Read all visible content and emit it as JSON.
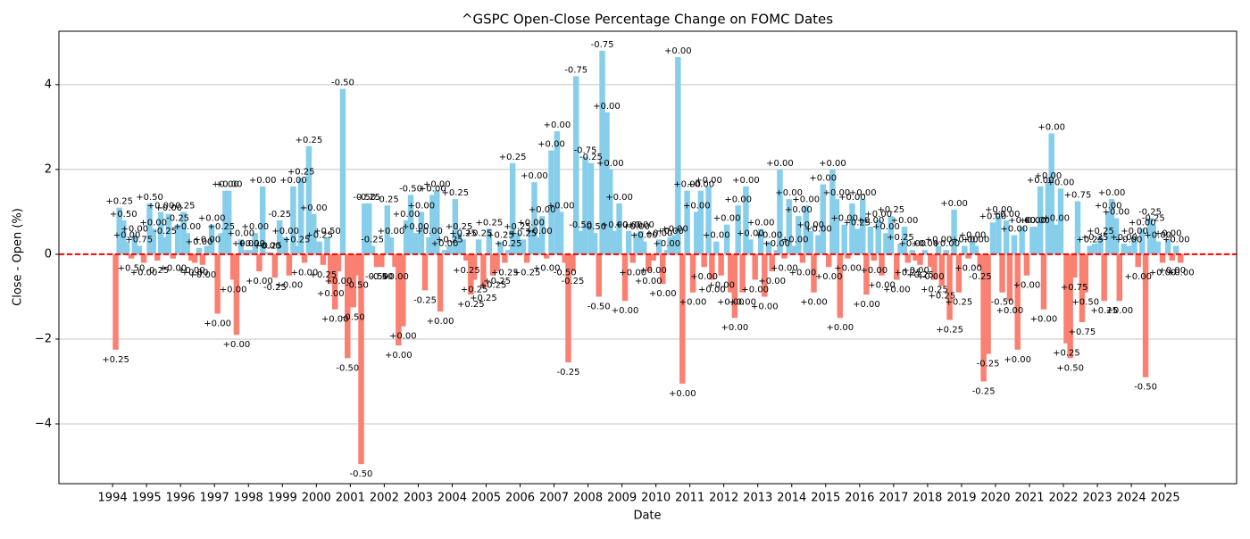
{
  "chart_data": {
    "type": "bar",
    "title": "^GSPC Open-Close Percentage Change on FOMC Dates",
    "x_label": "Date",
    "y_label": "Close - Open (%)",
    "pos_color": "#87ceeb",
    "neg_color": "#fa8072",
    "zero_line_color": "#ff0000",
    "grid": "y",
    "xlim": [
      1992.42,
      2027.1
    ],
    "xticks": [
      1994,
      1995,
      1996,
      1997,
      1998,
      1999,
      2000,
      2001,
      2002,
      2003,
      2004,
      2005,
      2006,
      2007,
      2008,
      2009,
      2010,
      2011,
      2012,
      2013,
      2014,
      2015,
      2016,
      2017,
      2018,
      2019,
      2020,
      2021,
      2022,
      2023,
      2024,
      2025
    ],
    "ylim": [
      -5.41,
      5.26
    ],
    "yticks": [
      {
        "value": -4,
        "label": "−4"
      },
      {
        "value": -2,
        "label": "−2"
      },
      0,
      2,
      4
    ],
    "x": [
      1994.09,
      1994.2,
      1994.32,
      1994.42,
      1994.55,
      1994.65,
      1994.78,
      1994.92,
      1995.09,
      1995.2,
      1995.32,
      1995.42,
      1995.55,
      1995.65,
      1995.78,
      1995.92,
      1996.09,
      1996.2,
      1996.32,
      1996.42,
      1996.55,
      1996.65,
      1996.78,
      1996.92,
      1997.09,
      1997.2,
      1997.32,
      1997.42,
      1997.55,
      1997.65,
      1997.78,
      1997.92,
      1998.09,
      1998.2,
      1998.32,
      1998.42,
      1998.55,
      1998.65,
      1998.78,
      1998.92,
      1999.09,
      1999.2,
      1999.32,
      1999.42,
      1999.55,
      1999.65,
      1999.78,
      1999.92,
      2000.09,
      2000.2,
      2000.32,
      2000.42,
      2000.55,
      2000.65,
      2000.78,
      2000.92,
      2001.09,
      2001.2,
      2001.32,
      2001.42,
      2001.55,
      2001.65,
      2001.78,
      2001.92,
      2002.09,
      2002.2,
      2002.32,
      2002.42,
      2002.55,
      2002.65,
      2002.78,
      2002.92,
      2003.09,
      2003.2,
      2003.32,
      2003.42,
      2003.55,
      2003.65,
      2003.78,
      2003.92,
      2004.09,
      2004.2,
      2004.32,
      2004.42,
      2004.55,
      2004.65,
      2004.78,
      2004.92,
      2005.09,
      2005.2,
      2005.32,
      2005.42,
      2005.55,
      2005.65,
      2005.78,
      2005.92,
      2006.09,
      2006.2,
      2006.32,
      2006.42,
      2006.55,
      2006.65,
      2006.78,
      2006.92,
      2007.09,
      2007.2,
      2007.32,
      2007.42,
      2007.55,
      2007.65,
      2007.78,
      2007.92,
      2008.09,
      2008.2,
      2008.32,
      2008.42,
      2008.55,
      2008.65,
      2008.78,
      2008.92,
      2009.09,
      2009.2,
      2009.32,
      2009.42,
      2009.55,
      2009.65,
      2009.78,
      2009.92,
      2010.09,
      2010.2,
      2010.32,
      2010.42,
      2010.55,
      2010.65,
      2010.78,
      2010.92,
      2011.09,
      2011.2,
      2011.32,
      2011.42,
      2011.55,
      2011.65,
      2011.78,
      2011.92,
      2012.09,
      2012.2,
      2012.32,
      2012.42,
      2012.55,
      2012.65,
      2012.78,
      2012.92,
      2013.09,
      2013.2,
      2013.32,
      2013.42,
      2013.55,
      2013.65,
      2013.78,
      2013.92,
      2014.09,
      2014.2,
      2014.32,
      2014.42,
      2014.55,
      2014.65,
      2014.78,
      2014.92,
      2015.09,
      2015.2,
      2015.32,
      2015.42,
      2015.55,
      2015.65,
      2015.78,
      2015.92,
      2016.09,
      2016.2,
      2016.32,
      2016.42,
      2016.55,
      2016.65,
      2016.78,
      2016.92,
      2017.09,
      2017.2,
      2017.32,
      2017.42,
      2017.55,
      2017.65,
      2017.78,
      2017.92,
      2018.09,
      2018.2,
      2018.32,
      2018.42,
      2018.55,
      2018.65,
      2018.78,
      2018.92,
      2019.09,
      2019.2,
      2019.32,
      2019.42,
      2019.55,
      2019.65,
      2019.78,
      2019.92,
      2020.09,
      2020.2,
      2020.32,
      2020.42,
      2020.55,
      2020.65,
      2020.78,
      2020.92,
      2021.09,
      2021.2,
      2021.32,
      2021.42,
      2021.55,
      2021.65,
      2021.78,
      2021.92,
      2022.09,
      2022.2,
      2022.32,
      2022.42,
      2022.55,
      2022.65,
      2022.78,
      2022.92,
      2023.09,
      2023.2,
      2023.32,
      2023.42,
      2023.55,
      2023.65,
      2023.78,
      2023.92,
      2024.09,
      2024.2,
      2024.32,
      2024.42,
      2024.55,
      2024.65,
      2024.78,
      2024.92,
      2025.08,
      2025.2,
      2025.32,
      2025.45
    ],
    "values": [
      -2.25,
      1.1,
      0.8,
      0.3,
      -0.1,
      0.45,
      0.2,
      -0.2,
      1.2,
      0.6,
      -0.15,
      1.0,
      0.4,
      0.95,
      -0.1,
      0.7,
      1.0,
      0.5,
      -0.15,
      -0.2,
      0.15,
      -0.25,
      0.2,
      0.7,
      -1.4,
      0.5,
      1.5,
      1.5,
      -0.6,
      -1.9,
      0.35,
      0.1,
      0.1,
      0.5,
      -0.4,
      1.6,
      0.05,
      0.05,
      -0.55,
      0.8,
      0.4,
      -0.5,
      1.6,
      0.2,
      1.8,
      -0.2,
      2.55,
      0.95,
      0.3,
      -0.25,
      0.4,
      -0.7,
      -1.3,
      -0.4,
      3.9,
      -2.45,
      -1.25,
      -0.5,
      -4.95,
      1.2,
      1.2,
      0.2,
      -0.3,
      -0.3,
      1.15,
      0.4,
      -0.3,
      -2.15,
      -1.7,
      0.8,
      1.4,
      0.5,
      1.0,
      -0.85,
      0.4,
      1.4,
      1.5,
      -1.35,
      0.1,
      0.2,
      1.3,
      0.5,
      0.35,
      -0.15,
      -0.95,
      -0.6,
      0.35,
      -0.8,
      0.6,
      -0.5,
      -0.4,
      0.3,
      -0.2,
      0.1,
      2.15,
      0.5,
      0.35,
      -0.2,
      0.6,
      1.7,
      0.4,
      0.9,
      -0.1,
      2.45,
      2.9,
      1.0,
      -0.2,
      -2.55,
      -0.4,
      4.2,
      0.55,
      2.3,
      2.15,
      0.5,
      -1.0,
      4.8,
      3.35,
      2.0,
      0.55,
      1.2,
      -1.1,
      0.55,
      -0.2,
      0.5,
      0.55,
      0.3,
      -0.4,
      -0.15,
      0.35,
      -0.7,
      0.1,
      0.4,
      0.45,
      4.65,
      -3.05,
      1.5,
      -0.9,
      1.0,
      1.5,
      -0.3,
      1.6,
      -0.6,
      0.3,
      -0.5,
      0.7,
      -0.9,
      -1.5,
      1.15,
      -0.9,
      1.6,
      0.35,
      -0.6,
      0.6,
      -1.0,
      0.3,
      -0.4,
      0.1,
      2.0,
      -0.1,
      1.3,
      0.2,
      0.9,
      -0.2,
      1.15,
      0.55,
      -0.9,
      0.45,
      1.65,
      -0.3,
      2.0,
      1.3,
      -1.5,
      0.7,
      -0.1,
      1.2,
      0.6,
      1.3,
      -0.95,
      0.65,
      -0.15,
      0.8,
      -0.5,
      0.5,
      0.9,
      -0.6,
      0.25,
      0.65,
      -0.2,
      0.1,
      -0.15,
      -0.25,
      0.1,
      -0.3,
      -0.6,
      0.2,
      -0.75,
      0.1,
      -1.55,
      1.05,
      -0.9,
      0.2,
      -0.1,
      0.3,
      0.2,
      -0.3,
      -3.0,
      -2.35,
      0.75,
      0.9,
      -0.9,
      0.8,
      -1.1,
      0.45,
      -2.25,
      0.65,
      -0.5,
      0.65,
      0.65,
      1.6,
      -1.3,
      1.7,
      2.85,
      0.7,
      1.55,
      -2.1,
      -2.45,
      -0.55,
      1.25,
      -1.6,
      -0.9,
      0.2,
      0.25,
      0.4,
      -1.1,
      1.0,
      1.3,
      0.85,
      -1.1,
      0.25,
      0.2,
      0.4,
      -0.3,
      0.6,
      -2.9,
      0.85,
      0.7,
      0.3,
      -0.2,
      0.35,
      -0.15,
      0.2,
      -0.2
    ],
    "annotations": [
      "+0.25",
      "+0.25",
      "+0.50",
      "+0.00",
      "+0.50",
      "+0.00",
      "+0.75",
      "+0.00",
      "+0.50",
      "+0.00",
      "-0.25",
      "+0.00",
      "-0.25",
      "+0.00",
      "+0.00",
      "-0.25",
      "-0.25",
      "+0.00",
      "+0.00",
      "+0.00",
      "+0.00",
      "+0.00",
      "+0.00",
      "+0.00",
      "+0.00",
      "+0.25",
      "+0.00",
      "+0.00",
      "+0.00",
      "+0.00",
      "+0.00",
      "+0.00",
      "+0.00",
      "+0.00",
      "+0.00",
      "+0.00",
      "+0.00",
      "-0.25",
      "-0.25",
      "-0.25",
      "+0.00",
      "+0.00",
      "+0.00",
      "+0.25",
      "+0.25",
      "+0.00",
      "+0.25",
      "+0.00",
      "+0.25",
      "+0.25",
      "+0.50",
      "+0.00",
      "+0.00",
      "+0.00",
      "-0.50",
      "-0.50",
      "-0.50",
      "-0.50",
      "-0.50",
      "-0.50",
      "-0.25",
      "-0.25",
      "-0.50",
      "-0.50",
      "-0.25",
      "+0.00",
      "+0.00",
      "+0.00",
      "+0.00",
      "+0.00",
      "-0.50",
      "+0.00",
      "+0.00",
      "-0.25",
      "+0.00",
      "+0.00",
      "+0.00",
      "+0.00",
      "+0.00",
      "+0.25",
      "+0.25",
      "+0.25",
      "+0.25",
      "+0.25",
      "+0.25",
      "+0.25",
      "+0.25",
      "+0.25",
      "+0.25",
      "+0.25",
      "+0.25",
      "+0.25",
      "+0.25",
      "+0.25",
      "+0.25",
      "+0.25",
      "+0.25",
      "+0.25",
      "+0.00",
      "+0.00",
      "+0.00",
      "+0.00",
      "+0.00",
      "+0.00",
      "+0.00",
      "+0.00",
      "-0.50",
      "-0.25",
      "-0.25",
      "-0.75",
      "-0.50",
      "-0.75",
      "-0.25",
      "-0.50",
      "-0.50",
      "-0.75",
      "+0.00",
      "+0.00",
      "+0.00",
      "+0.00",
      "+0.00",
      "+0.00",
      "+0.00",
      "+0.00",
      "+0.00",
      "+0.00",
      "+0.00",
      "+0.00",
      "+0.00",
      "+0.00",
      "+0.00",
      "+0.00",
      "+0.00",
      "+0.00",
      "+0.00",
      "+0.00",
      "+0.00",
      "+0.00",
      "+0.00",
      "+0.00",
      "+0.00",
      "+0.00",
      "+0.00",
      "+0.00",
      "+0.00",
      "+0.00",
      "+0.00",
      "+0.00",
      "+0.00",
      "+0.00",
      "+0.00",
      "+0.00",
      "+0.00",
      "+0.00",
      "+0.00",
      "+0.00",
      "+0.00",
      "+0.00",
      "+0.00",
      "+0.00",
      "+0.00",
      "+0.00",
      "+0.00",
      "+0.00",
      "+0.00",
      "+0.00",
      "+0.00",
      "+0.00",
      "+0.00",
      "+0.00",
      "+0.00",
      "+0.00",
      "+0.00",
      "+0.00",
      "+0.00",
      "+0.25",
      "+0.00",
      "+0.00",
      "+0.00",
      "+0.00",
      "+0.00",
      "+0.00",
      "+0.00",
      "+0.25",
      "+0.00",
      "+0.25",
      "+0.00",
      "+0.25",
      "+0.00",
      "+0.00",
      "+0.25",
      "+0.00",
      "+0.00",
      "+0.25",
      "+0.00",
      "+0.25",
      "+0.00",
      "+0.25",
      "+0.00",
      "+0.25",
      "+0.00",
      "+0.00",
      "+0.00",
      "+0.00",
      "-0.25",
      "-0.25",
      "-0.25",
      "+0.00",
      "+0.00",
      "-0.50",
      "+0.00",
      "+0.00",
      "+0.00",
      "+0.00",
      "+0.00",
      "+0.00",
      "+0.00",
      "+0.00",
      "+0.00",
      "+0.00",
      "+0.00",
      "+0.00",
      "+0.00",
      "+0.00",
      "+0.25",
      "+0.50",
      "+0.75",
      "+0.75",
      "+0.75",
      "+0.50",
      "+0.25",
      "+0.25",
      "+0.25",
      "+0.25",
      "+0.00",
      "+0.00",
      "+0.00",
      "+0.00",
      "+0.00",
      "+0.00",
      "+0.00",
      "+0.00",
      "+0.00",
      "-0.50",
      "-0.25",
      "-0.25",
      "+0.00",
      "+0.00",
      "+0.00",
      "+0.00",
      "+0.00",
      "+0.00"
    ]
  }
}
